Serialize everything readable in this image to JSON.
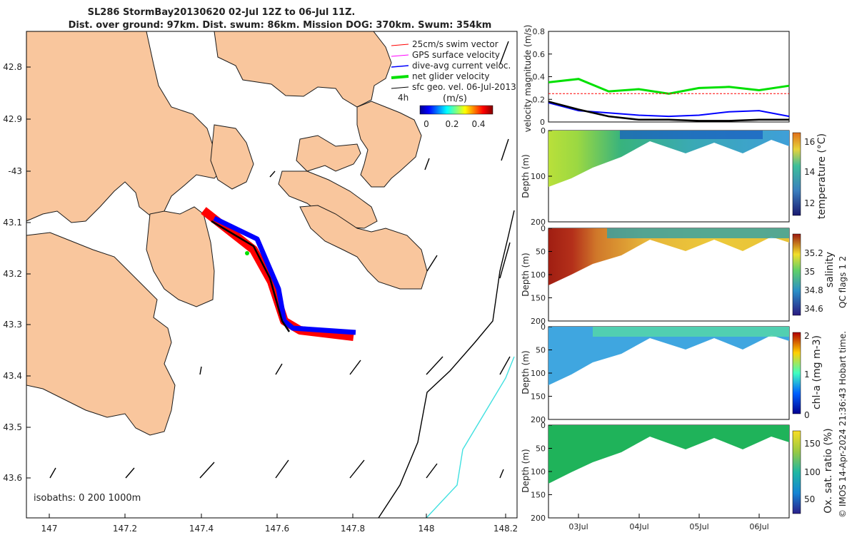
{
  "title_lines": [
    "SL286 StormBay20130620 02-Jul 12Z to 06-Jul 11Z.",
    "Dist. over ground: 97km. Dist. swum: 86km. Mission DOG: 370km. Swum: 354km"
  ],
  "map": {
    "lon_ticks": [
      "147",
      "147.2",
      "147.4",
      "147.6",
      "147.8",
      "148",
      "148.2"
    ],
    "lat_ticks": [
      "42.8",
      "42.9",
      "-43",
      "43.1",
      "43.2",
      "43.3",
      "43.4",
      "43.5",
      "43.6"
    ],
    "legend": [
      {
        "label": "25cm/s swim vector",
        "color": "#ff0000"
      },
      {
        "label": "GPS surface velocity",
        "color": "#ff00ff"
      },
      {
        "label": "dive-avg current veloc.",
        "color": "#0000ff"
      },
      {
        "label": "net glider velocity",
        "color": "#00e000"
      },
      {
        "label": "sfc geo. vel. 06-Jul-2013",
        "color": "#000000"
      }
    ],
    "scale_label": "4h",
    "colorbar_unit": "(m/s)",
    "colorbar_ticks": [
      "0",
      "0.2",
      "0.4"
    ],
    "isobaths_label": "isobaths: 0   200  1000m",
    "land_color": "#f9c69d",
    "track_color": "#ff0000",
    "current_color": "#0000ff"
  },
  "chart_data": [
    {
      "type": "line",
      "panel": "velocity",
      "ylabel": "velocity magnitude (m/s)",
      "ylim": [
        0,
        0.8
      ],
      "yticks": [
        "0",
        "0.2",
        "0.4",
        "0.6",
        "0.8"
      ],
      "x_days": [
        0,
        0.5,
        1,
        1.5,
        2,
        2.5,
        3,
        3.5,
        4
      ],
      "series": [
        {
          "color": "#00e000",
          "values": [
            0.35,
            0.38,
            0.27,
            0.29,
            0.25,
            0.3,
            0.31,
            0.28,
            0.32
          ]
        },
        {
          "color": "#0000ff",
          "values": [
            0.17,
            0.1,
            0.08,
            0.06,
            0.05,
            0.06,
            0.09,
            0.1,
            0.05
          ]
        },
        {
          "color": "#000000",
          "values": [
            0.18,
            0.11,
            0.05,
            0.02,
            0.02,
            0.01,
            0.01,
            0.02,
            0.02
          ]
        },
        {
          "color": "#ff0000",
          "values": [
            0.25,
            0.25,
            0.25,
            0.25,
            0.25,
            0.25,
            0.25,
            0.25,
            0.25
          ]
        }
      ]
    },
    {
      "type": "heatmap",
      "panel": "temperature",
      "ylabel": "Depth (m)",
      "cbar_label": "temperature (°C)",
      "ylim": [
        200,
        0
      ],
      "yticks": [
        "0",
        "100",
        "200"
      ],
      "cbar_ticks": [
        "16",
        "14",
        "12"
      ]
    },
    {
      "type": "heatmap",
      "panel": "salinity",
      "ylabel": "Depth (m)",
      "cbar_label": "salinity",
      "ylim": [
        200,
        0
      ],
      "yticks": [
        "0",
        "50",
        "100",
        "150",
        "200"
      ],
      "cbar_ticks": [
        "35.2",
        "35",
        "34.8",
        "34.6"
      ]
    },
    {
      "type": "heatmap",
      "panel": "chl-a",
      "ylabel": "Depth (m)",
      "cbar_label": "chl-a (mg m-3)",
      "ylim": [
        200,
        0
      ],
      "yticks": [
        "0",
        "50",
        "100",
        "150",
        "200"
      ],
      "cbar_ticks": [
        "2",
        "1",
        "0"
      ]
    },
    {
      "type": "heatmap",
      "panel": "oxygen",
      "ylabel": "Depth (m)",
      "cbar_label": "Ox. sat. ratio (%)",
      "ylim": [
        200,
        0
      ],
      "yticks": [
        "0",
        "50",
        "100",
        "150",
        "200"
      ],
      "cbar_ticks": [
        "150",
        "100",
        "50"
      ]
    }
  ],
  "time_ticks": [
    "03Jul",
    "04Jul",
    "05Jul",
    "06Jul"
  ],
  "qc_label": "QC flags 1  2",
  "credit": "© IMOS 14-Apr-2024 21:36:43 Hobart time."
}
